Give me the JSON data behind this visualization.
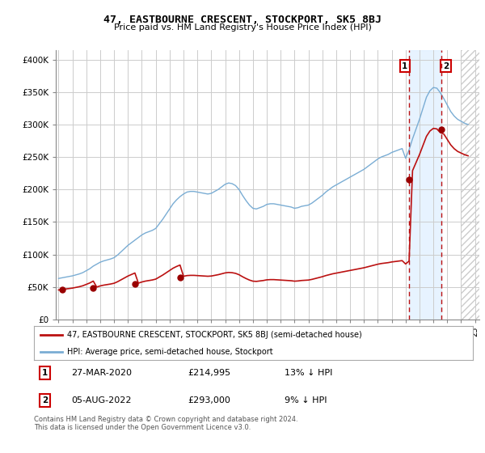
{
  "title": "47, EASTBOURNE CRESCENT, STOCKPORT, SK5 8BJ",
  "subtitle": "Price paid vs. HM Land Registry's House Price Index (HPI)",
  "ylabel_ticks": [
    "£0",
    "£50K",
    "£100K",
    "£150K",
    "£200K",
    "£250K",
    "£300K",
    "£350K",
    "£400K"
  ],
  "ytick_values": [
    0,
    50000,
    100000,
    150000,
    200000,
    250000,
    300000,
    350000,
    400000
  ],
  "ylim": [
    0,
    415000
  ],
  "xlim_start": 1994.8,
  "xlim_end": 2025.3,
  "legend_line1": "47, EASTBOURNE CRESCENT, STOCKPORT, SK5 8BJ (semi-detached house)",
  "legend_line2": "HPI: Average price, semi-detached house, Stockport",
  "annotation1_label": "1",
  "annotation1_date": "27-MAR-2020",
  "annotation1_price": "£214,995",
  "annotation1_pct": "13% ↓ HPI",
  "annotation2_label": "2",
  "annotation2_date": "05-AUG-2022",
  "annotation2_price": "£293,000",
  "annotation2_pct": "9% ↓ HPI",
  "footnote": "Contains HM Land Registry data © Crown copyright and database right 2024.\nThis data is licensed under the Open Government Licence v3.0.",
  "red_line_color": "#bb1111",
  "blue_line_color": "#7aadd4",
  "dot_color": "#990000",
  "annotation_box_color": "#cc0000",
  "shaded_region_color": "#ddeeff",
  "hatch_color": "#cccccc",
  "grid_color": "#cccccc",
  "background_color": "#ffffff",
  "sale1_year": 1995.25,
  "sale1_price": 46000,
  "sale2_year": 1997.5,
  "sale2_price": 48000,
  "sale3_year": 2000.5,
  "sale3_price": 54000,
  "sale4_year": 2003.75,
  "sale4_price": 65000,
  "sale5_year": 2020.25,
  "sale5_price": 214995,
  "sale6_year": 2022.6,
  "sale6_price": 293000,
  "vline1_x": 2020.25,
  "vline2_x": 2022.6,
  "shade_x_start": 2020.25,
  "shade_x_end": 2022.6,
  "hatch_x_start": 2024.0,
  "hatch_x_end": 2025.3,
  "hpi_index_years": [
    1995.0,
    1995.25,
    1995.5,
    1995.75,
    1996.0,
    1996.25,
    1996.5,
    1996.75,
    1997.0,
    1997.25,
    1997.5,
    1997.75,
    1998.0,
    1998.25,
    1998.5,
    1998.75,
    1999.0,
    1999.25,
    1999.5,
    1999.75,
    2000.0,
    2000.25,
    2000.5,
    2000.75,
    2001.0,
    2001.25,
    2001.5,
    2001.75,
    2002.0,
    2002.25,
    2002.5,
    2002.75,
    2003.0,
    2003.25,
    2003.5,
    2003.75,
    2004.0,
    2004.25,
    2004.5,
    2004.75,
    2005.0,
    2005.25,
    2005.5,
    2005.75,
    2006.0,
    2006.25,
    2006.5,
    2006.75,
    2007.0,
    2007.25,
    2007.5,
    2007.75,
    2008.0,
    2008.25,
    2008.5,
    2008.75,
    2009.0,
    2009.25,
    2009.5,
    2009.75,
    2010.0,
    2010.25,
    2010.5,
    2010.75,
    2011.0,
    2011.25,
    2011.5,
    2011.75,
    2012.0,
    2012.25,
    2012.5,
    2012.75,
    2013.0,
    2013.25,
    2013.5,
    2013.75,
    2014.0,
    2014.25,
    2014.5,
    2014.75,
    2015.0,
    2015.25,
    2015.5,
    2015.75,
    2016.0,
    2016.25,
    2016.5,
    2016.75,
    2017.0,
    2017.25,
    2017.5,
    2017.75,
    2018.0,
    2018.25,
    2018.5,
    2018.75,
    2019.0,
    2019.25,
    2019.5,
    2019.75,
    2020.0,
    2020.25,
    2020.5,
    2020.75,
    2021.0,
    2021.25,
    2021.5,
    2021.75,
    2022.0,
    2022.25,
    2022.5,
    2022.75,
    2023.0,
    2023.25,
    2023.5,
    2023.75,
    2024.0,
    2024.25,
    2024.5
  ],
  "hpi_index_values": [
    63000,
    64000,
    65000,
    66000,
    67000,
    68500,
    70000,
    72000,
    75000,
    78000,
    82000,
    85000,
    88000,
    90000,
    91500,
    93000,
    95000,
    99000,
    104000,
    109000,
    114000,
    118000,
    122000,
    126000,
    130000,
    133000,
    135000,
    137000,
    140000,
    147000,
    154000,
    162000,
    170000,
    178000,
    184000,
    189000,
    193000,
    196000,
    197000,
    197000,
    196000,
    195000,
    194000,
    193000,
    194000,
    197000,
    200000,
    204000,
    208000,
    210000,
    209000,
    206000,
    200000,
    191000,
    183000,
    176000,
    171000,
    170000,
    172000,
    174000,
    177000,
    178000,
    178000,
    177000,
    176000,
    175000,
    174000,
    173000,
    171000,
    172000,
    174000,
    175000,
    176000,
    179000,
    183000,
    187000,
    191000,
    196000,
    200000,
    204000,
    207000,
    210000,
    213000,
    216000,
    219000,
    222000,
    225000,
    228000,
    231000,
    235000,
    239000,
    243000,
    247000,
    250000,
    252000,
    254000,
    257000,
    259000,
    261000,
    263000,
    248000,
    261000,
    278000,
    293000,
    308000,
    325000,
    342000,
    352000,
    357000,
    356000,
    349000,
    340000,
    330000,
    320000,
    313000,
    308000,
    305000,
    302000,
    300000
  ]
}
